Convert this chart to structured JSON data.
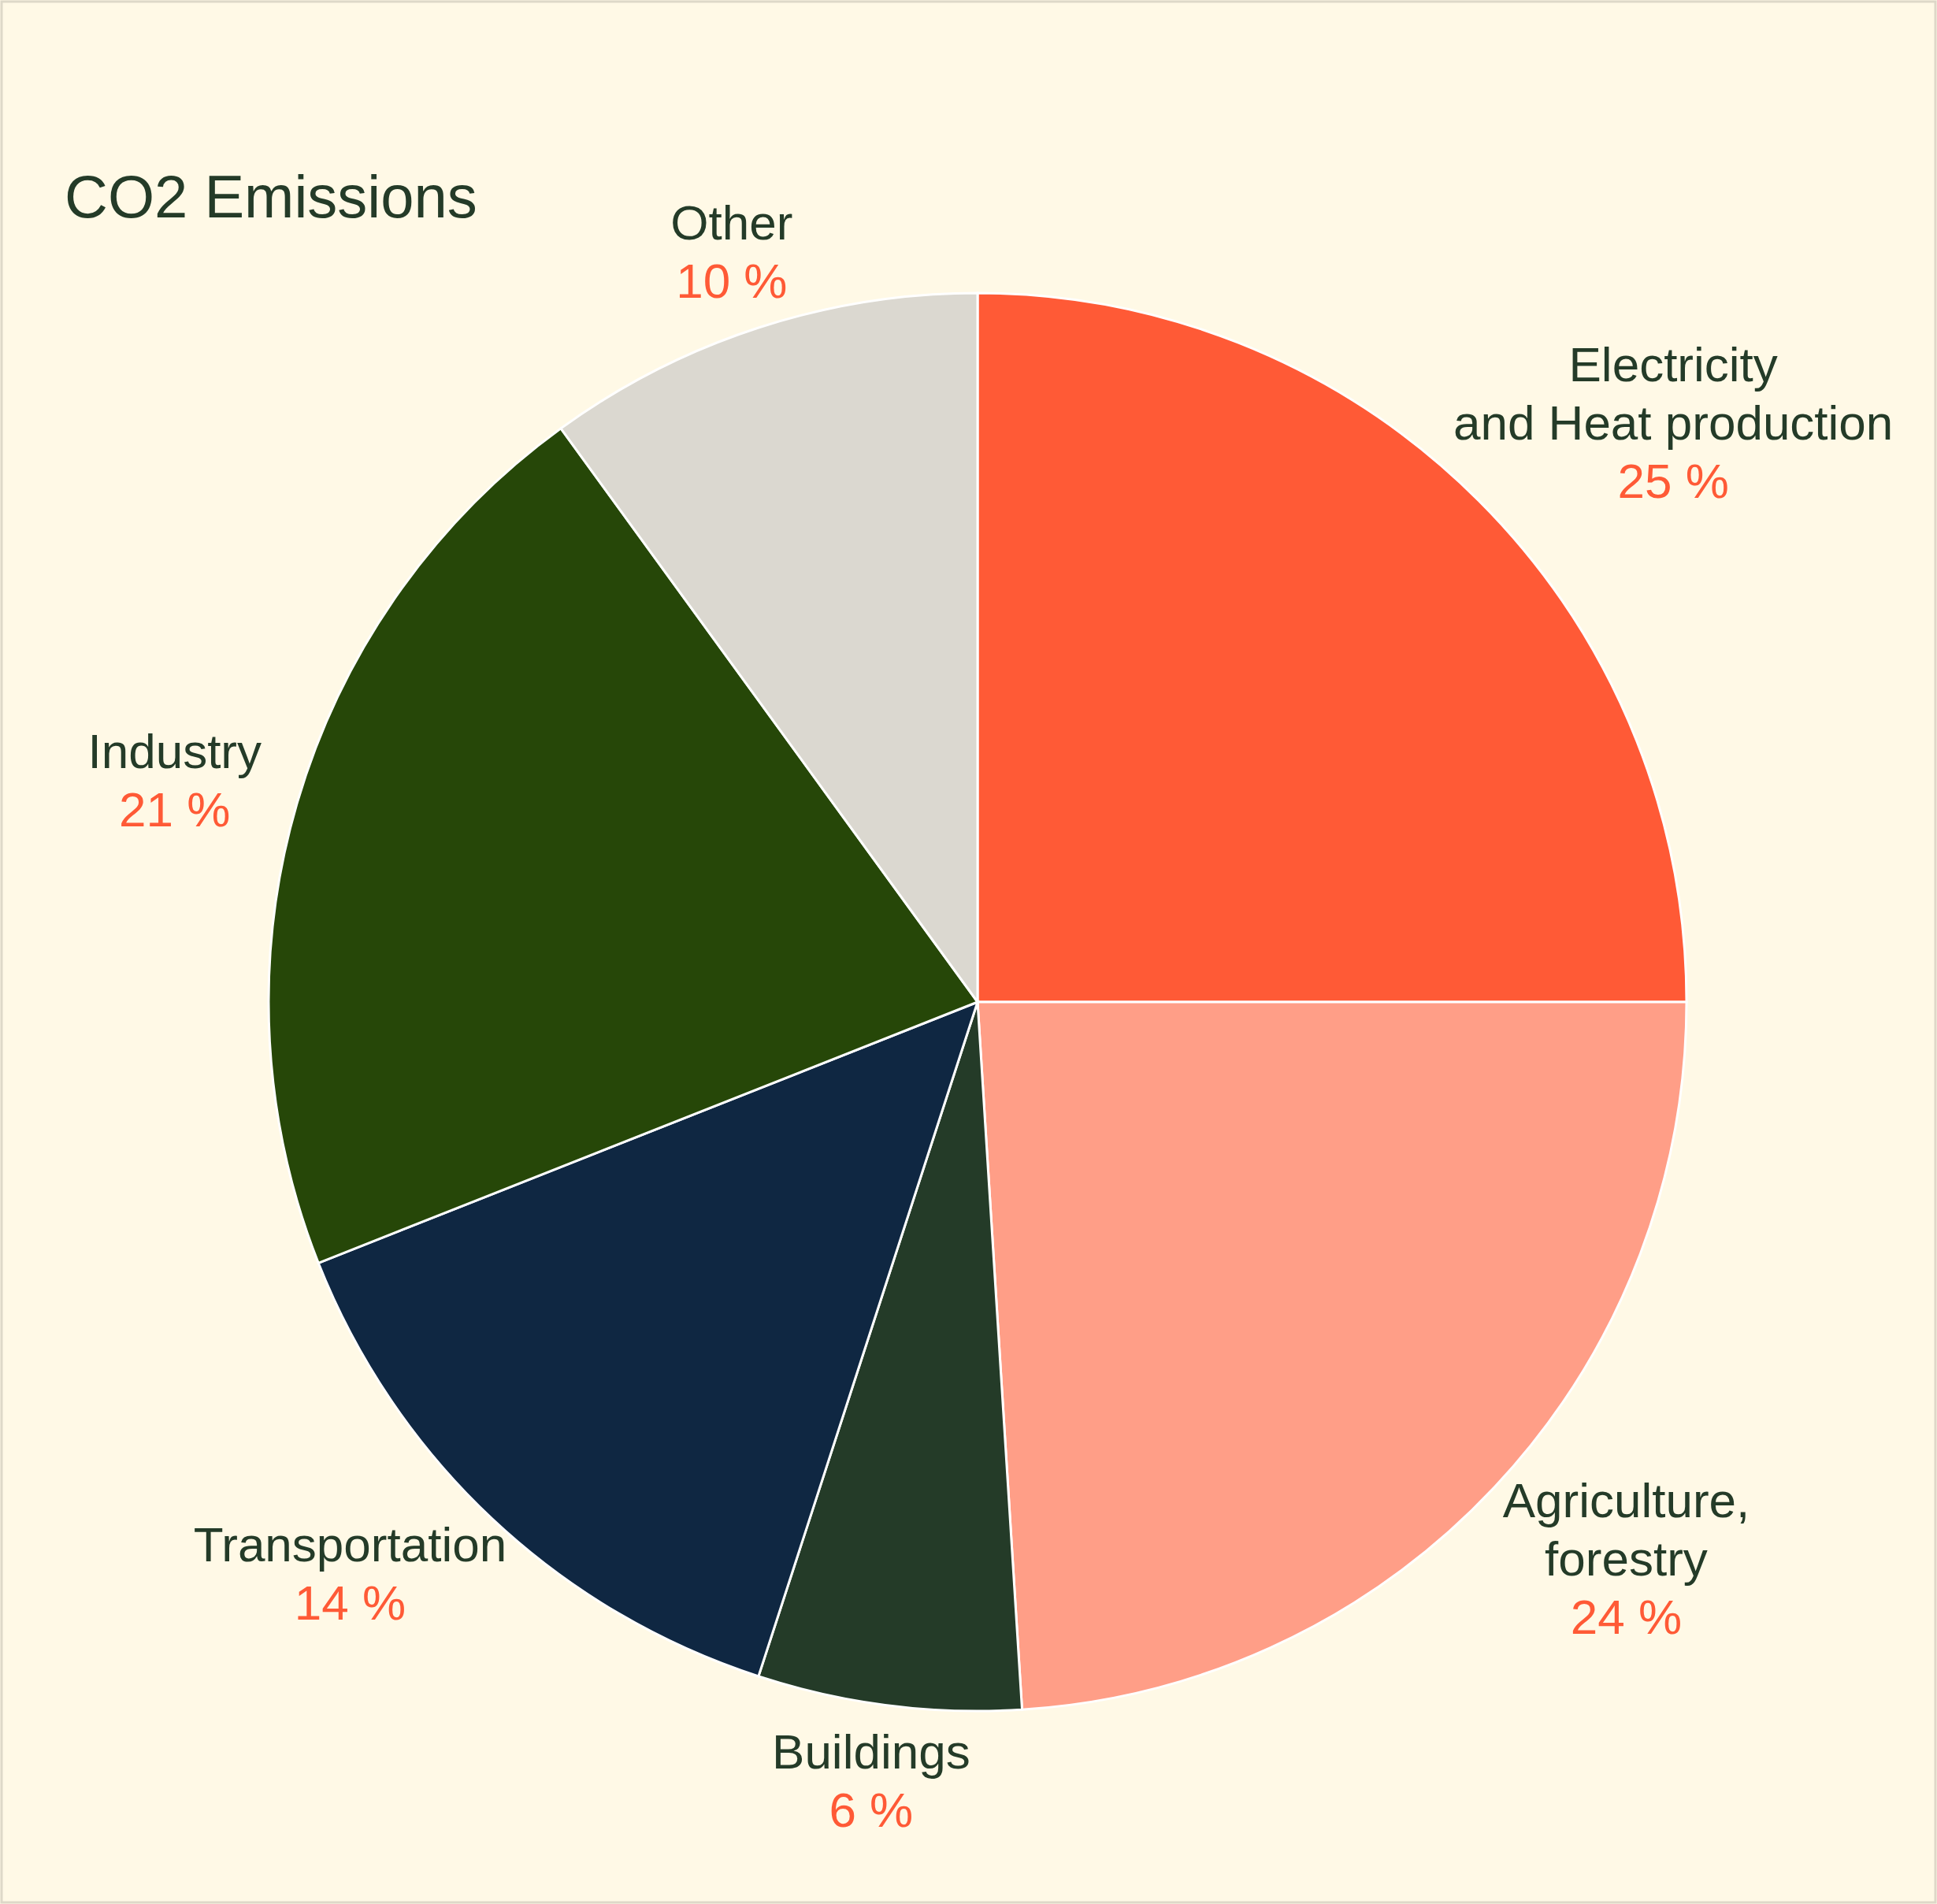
{
  "chart_data": {
    "type": "pie",
    "title": "CO2 Emissions",
    "categories": [
      "Electricity\nand Heat production",
      "Agriculture,\nforestry",
      "Buildings",
      "Transportation",
      "Industry",
      "Other"
    ],
    "values": [
      25,
      24,
      6,
      14,
      21,
      10
    ],
    "colors": [
      "#ff5a36",
      "#ff9e87",
      "#243b28",
      "#0f2742",
      "#264708",
      "#dbd8d0"
    ],
    "value_labels": [
      "25 %",
      "24 %",
      "6 %",
      "14 %",
      "21 %",
      "10 %"
    ]
  }
}
